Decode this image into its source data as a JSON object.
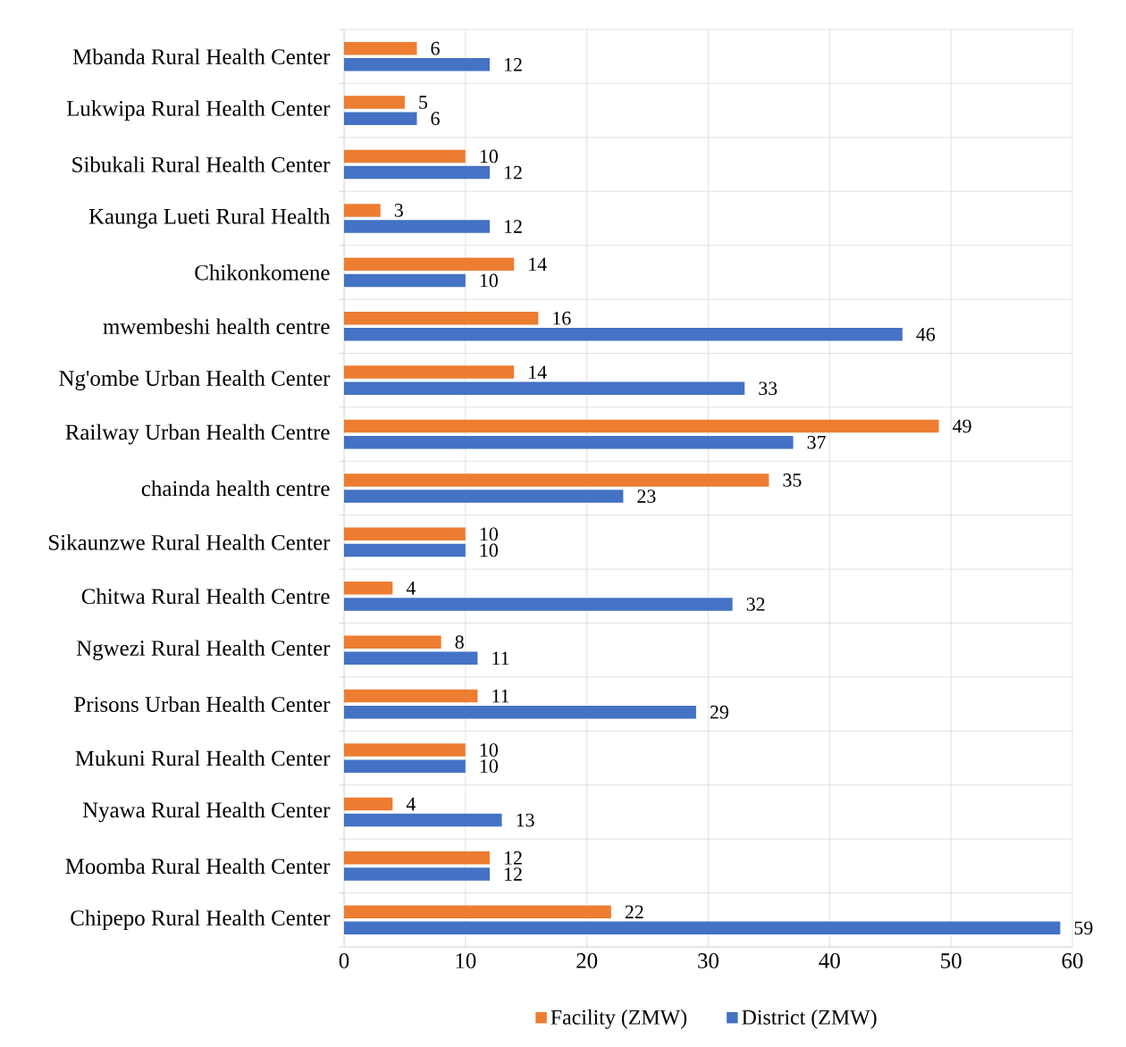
{
  "chart_data": {
    "type": "bar",
    "orientation": "horizontal",
    "categories": [
      "Mbanda Rural Health Center",
      "Lukwipa Rural Health Center",
      "Sibukali Rural Health Center",
      "Kaunga Lueti Rural Health",
      "Chikonkomene",
      "mwembeshi health centre",
      "Ng'ombe Urban Health Center",
      "Railway Urban Health Centre",
      "chainda health centre",
      "Sikaunzwe Rural Health Center",
      "Chitwa Rural Health Centre",
      "Ngwezi Rural Health Center",
      "Prisons Urban Health Center",
      "Mukuni Rural Health Center",
      "Nyawa Rural Health Center",
      "Moomba Rural Health Center",
      "Chipepo Rural Health Center"
    ],
    "series": [
      {
        "name": "Facility (ZMW)",
        "color": "#ed7d31",
        "values": [
          6,
          5,
          10,
          3,
          14,
          16,
          14,
          49,
          35,
          10,
          4,
          8,
          11,
          10,
          4,
          12,
          22
        ]
      },
      {
        "name": "District (ZMW)",
        "color": "#4472c4",
        "values": [
          12,
          6,
          12,
          12,
          10,
          46,
          33,
          37,
          23,
          10,
          32,
          11,
          29,
          10,
          13,
          12,
          59
        ]
      }
    ],
    "xlim": [
      0,
      60
    ],
    "xticks": [
      0,
      10,
      20,
      30,
      40,
      50,
      60
    ],
    "grid": true,
    "legend": "bottom",
    "data_labels": true
  }
}
